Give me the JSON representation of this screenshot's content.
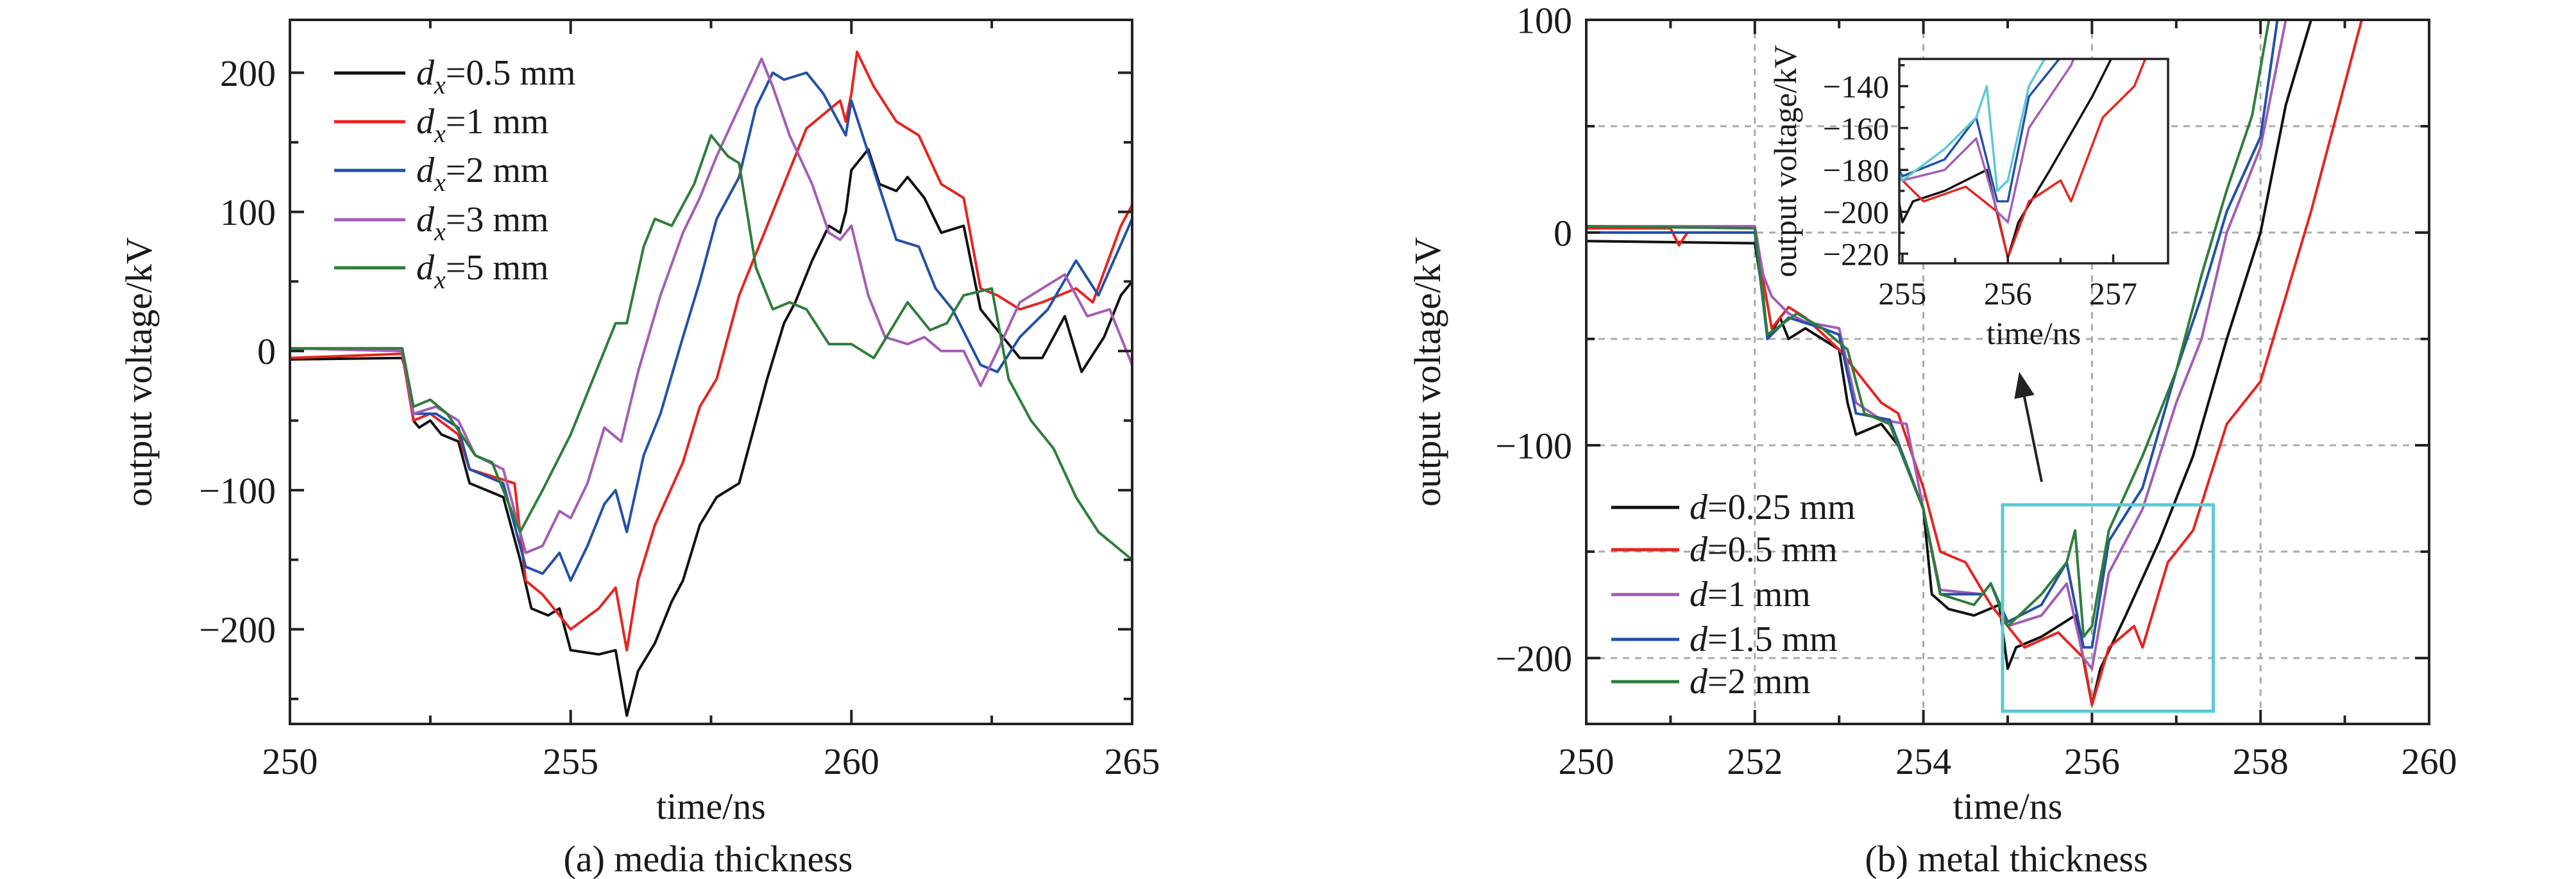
{
  "chart_data": [
    {
      "type": "line",
      "id": "a",
      "caption": "(a) media thickness",
      "xlabel": "time/ns",
      "ylabel": "output voltage/kV",
      "xlim": [
        250,
        265
      ],
      "ylim": [
        -268,
        238
      ],
      "xticks": [
        250,
        255,
        260,
        265
      ],
      "yticks": [
        -200,
        -100,
        0,
        100,
        200
      ],
      "grid": false,
      "legend_position": "top-left",
      "series": [
        {
          "symbol": "d",
          "sub": "x",
          "rest": "=0.5 mm",
          "color": "#111111",
          "x": [
            250,
            252,
            252.1,
            252.2,
            252.3,
            252.5,
            252.7,
            253,
            253.2,
            253.5,
            253.8,
            254.1,
            254.3,
            254.6,
            254.8,
            255,
            255.5,
            255.8,
            256,
            256.2,
            256.5,
            256.8,
            257,
            257.3,
            257.6,
            258,
            258.2,
            258.5,
            258.8,
            259,
            259.3,
            259.6,
            259.8,
            259.9,
            260,
            260.3,
            260.5,
            260.8,
            261,
            261.3,
            261.6,
            262,
            262.3,
            262.6,
            263,
            263.4,
            263.8,
            264.1,
            264.5,
            264.8,
            265
          ],
          "y": [
            -6,
            -5,
            -20,
            -50,
            -55,
            -50,
            -60,
            -65,
            -95,
            -100,
            -105,
            -150,
            -185,
            -190,
            -185,
            -215,
            -218,
            -215,
            -262,
            -230,
            -210,
            -180,
            -165,
            -125,
            -105,
            -95,
            -65,
            -20,
            20,
            35,
            65,
            90,
            85,
            100,
            130,
            145,
            120,
            115,
            125,
            110,
            85,
            90,
            30,
            15,
            -5,
            -5,
            25,
            -15,
            10,
            40,
            50
          ]
        },
        {
          "symbol": "d",
          "sub": "x",
          "rest": "=1 mm",
          "color": "#e8231f",
          "x": [
            250,
            252,
            252.2,
            252.5,
            253,
            253.2,
            253.6,
            254,
            254.2,
            254.5,
            255,
            255.5,
            255.8,
            256,
            256.2,
            256.5,
            257,
            257.3,
            257.6,
            258,
            258.3,
            258.6,
            258.9,
            259.2,
            259.5,
            259.8,
            259.9,
            260,
            260.1,
            260.4,
            260.8,
            261.2,
            261.6,
            262,
            262.3,
            262.6,
            263,
            263.4,
            264,
            264.3,
            264.8,
            265
          ],
          "y": [
            -5,
            -2,
            -50,
            -45,
            -60,
            -85,
            -90,
            -95,
            -165,
            -175,
            -200,
            -185,
            -170,
            -215,
            -165,
            -125,
            -80,
            -40,
            -20,
            40,
            70,
            100,
            130,
            160,
            170,
            180,
            165,
            185,
            215,
            190,
            165,
            155,
            120,
            110,
            45,
            40,
            30,
            35,
            45,
            35,
            90,
            105
          ]
        },
        {
          "symbol": "d",
          "sub": "x",
          "rest": "=2 mm",
          "color": "#2350a8",
          "x": [
            250,
            252,
            252.2,
            252.6,
            253,
            253.2,
            253.8,
            254.2,
            254.5,
            254.8,
            255,
            255.3,
            255.6,
            255.8,
            256,
            256.3,
            256.6,
            257,
            257.3,
            257.6,
            258,
            258.3,
            258.6,
            258.8,
            259.2,
            259.5,
            259.9,
            260,
            260.4,
            260.8,
            261.2,
            261.5,
            261.8,
            262.3,
            262.6,
            263,
            263.5,
            264,
            264.4,
            265
          ],
          "y": [
            2,
            0,
            -45,
            -45,
            -55,
            -85,
            -95,
            -155,
            -160,
            -145,
            -165,
            -140,
            -110,
            -100,
            -130,
            -75,
            -45,
            10,
            50,
            95,
            125,
            175,
            200,
            195,
            200,
            185,
            155,
            180,
            130,
            80,
            75,
            45,
            30,
            -10,
            -15,
            10,
            30,
            65,
            40,
            95
          ]
        },
        {
          "symbol": "d",
          "sub": "x",
          "rest": "=3 mm",
          "color": "#a35db5",
          "x": [
            250,
            252,
            252.2,
            252.6,
            253,
            253.3,
            253.8,
            254.2,
            254.5,
            254.8,
            255,
            255.3,
            255.6,
            255.9,
            256.2,
            256.6,
            257,
            257.3,
            257.6,
            258,
            258.4,
            258.6,
            258.9,
            259.3,
            259.6,
            259.8,
            260,
            260.3,
            260.6,
            261,
            261.3,
            261.6,
            262,
            262.3,
            262.6,
            263,
            263.4,
            263.8,
            264.2,
            264.6,
            265
          ],
          "y": [
            2,
            0,
            -45,
            -40,
            -50,
            -75,
            -85,
            -145,
            -140,
            -115,
            -120,
            -95,
            -55,
            -65,
            -15,
            40,
            85,
            110,
            140,
            175,
            210,
            190,
            155,
            120,
            85,
            80,
            90,
            40,
            10,
            5,
            10,
            0,
            0,
            -25,
            0,
            35,
            45,
            55,
            25,
            30,
            -10
          ]
        },
        {
          "symbol": "d",
          "sub": "x",
          "rest": "=5 mm",
          "color": "#2e7d3a",
          "x": [
            250,
            252,
            252.2,
            252.5,
            252.8,
            253.3,
            253.6,
            254.1,
            254.5,
            255,
            255.5,
            255.8,
            256,
            256.3,
            256.5,
            256.8,
            257.2,
            257.5,
            257.8,
            258,
            258.3,
            258.6,
            258.9,
            259.2,
            259.6,
            260,
            260.4,
            260.7,
            261,
            261.4,
            261.7,
            262,
            262.5,
            262.8,
            263.2,
            263.6,
            264,
            264.4,
            265
          ],
          "y": [
            2,
            2,
            -40,
            -35,
            -45,
            -75,
            -80,
            -130,
            -100,
            -60,
            -10,
            20,
            20,
            75,
            95,
            90,
            120,
            155,
            140,
            135,
            60,
            30,
            35,
            30,
            5,
            5,
            -5,
            15,
            35,
            15,
            20,
            40,
            45,
            -20,
            -50,
            -70,
            -105,
            -130,
            -150
          ]
        }
      ]
    },
    {
      "type": "line",
      "id": "b",
      "caption": "(b) metal thickness",
      "xlabel": "time/ns",
      "ylabel": "output voltage/kV",
      "xlim": [
        250,
        260
      ],
      "ylim": [
        -231,
        100
      ],
      "xticks": [
        250,
        252,
        254,
        256,
        258,
        260
      ],
      "yticks": [
        -200,
        -100,
        0,
        100
      ],
      "grid": true,
      "grid_x": [
        252,
        254,
        256,
        258
      ],
      "grid_y": [
        -200,
        -150,
        -100,
        -50,
        0,
        50
      ],
      "legend_position": "bottom-left",
      "zoom_box": {
        "x": [
          255,
          257.5
        ],
        "y": [
          -225,
          -128
        ]
      },
      "series": [
        {
          "symbol": "d",
          "sub": "",
          "rest": "=0.25 mm",
          "color": "#111111",
          "x": [
            250,
            252,
            252.1,
            252.15,
            252.3,
            252.4,
            252.6,
            252.8,
            253,
            253.1,
            253.2,
            253.5,
            253.7,
            254,
            254.1,
            254.3,
            254.6,
            254.9,
            255,
            255.1,
            255.4,
            255.6,
            255.8,
            256,
            256.1,
            256.4,
            256.8,
            257.2,
            257.6,
            258,
            258.3,
            258.6
          ],
          "y": [
            -4,
            -5,
            -30,
            -50,
            -40,
            -50,
            -45,
            -50,
            -55,
            -80,
            -95,
            -90,
            -100,
            -130,
            -170,
            -177,
            -180,
            -175,
            -205,
            -195,
            -190,
            -185,
            -180,
            -222,
            -205,
            -180,
            -145,
            -105,
            -50,
            0,
            60,
            100
          ]
        },
        {
          "symbol": "d",
          "sub": "",
          "rest": "=0.5 mm",
          "color": "#e8231f",
          "x": [
            250,
            251,
            251.1,
            251.2,
            252,
            252.2,
            252.4,
            252.6,
            253,
            253.2,
            253.5,
            253.7,
            254,
            254.2,
            254.5,
            254.8,
            255,
            255.2,
            255.6,
            255.9,
            256,
            256.2,
            256.5,
            256.6,
            256.9,
            257.2,
            257.6,
            258,
            258.3,
            258.6,
            258.8,
            259,
            259.2
          ],
          "y": [
            2,
            2,
            -6,
            0,
            0,
            -45,
            -35,
            -40,
            -55,
            -65,
            -80,
            -85,
            -120,
            -150,
            -155,
            -175,
            -185,
            -195,
            -188,
            -200,
            -222,
            -195,
            -185,
            -195,
            -155,
            -140,
            -90,
            -70,
            -30,
            10,
            40,
            70,
            100
          ]
        },
        {
          "symbol": "d",
          "sub": "",
          "rest": "=1 mm",
          "color": "#a35db5",
          "x": [
            250,
            252,
            252.1,
            252.2,
            252.4,
            252.6,
            253,
            253.2,
            253.5,
            253.8,
            254,
            254.2,
            254.7,
            254.8,
            255,
            255.4,
            255.7,
            255.9,
            256,
            256.2,
            256.6,
            257,
            257.3,
            257.6,
            258,
            258.3
          ],
          "y": [
            3,
            3,
            -20,
            -30,
            -38,
            -42,
            -45,
            -80,
            -88,
            -90,
            -130,
            -168,
            -170,
            -165,
            -185,
            -180,
            -165,
            -200,
            -205,
            -160,
            -130,
            -80,
            -50,
            0,
            40,
            100
          ]
        },
        {
          "symbol": "d",
          "sub": "",
          "rest": "=1.5 mm",
          "color": "#2350a8",
          "x": [
            250,
            252,
            252.15,
            252.4,
            252.8,
            253,
            253.2,
            253.6,
            254,
            254.2,
            254.7,
            254.8,
            255,
            255.4,
            255.7,
            255.9,
            256,
            256.2,
            256.6,
            257,
            257.3,
            257.6,
            258,
            258.2
          ],
          "y": [
            0,
            0,
            -50,
            -40,
            -45,
            -48,
            -85,
            -88,
            -130,
            -170,
            -170,
            -165,
            -183,
            -175,
            -155,
            -195,
            -195,
            -145,
            -120,
            -65,
            -30,
            10,
            45,
            100
          ]
        },
        {
          "symbol": "d",
          "sub": "",
          "rest": "=2 mm",
          "color": "#2e7d3a",
          "inset_color": "#5bc8d6",
          "x": [
            250,
            252,
            252.15,
            252.5,
            252.8,
            253.1,
            253.3,
            253.6,
            254,
            254.2,
            254.6,
            254.8,
            255,
            255.4,
            255.7,
            255.8,
            255.9,
            256,
            256.2,
            256.6,
            257,
            257.3,
            257.6,
            257.9,
            258.1
          ],
          "y": [
            3,
            2,
            -48,
            -38,
            -45,
            -55,
            -85,
            -90,
            -130,
            -170,
            -175,
            -165,
            -185,
            -170,
            -155,
            -140,
            -190,
            -185,
            -140,
            -105,
            -65,
            -20,
            20,
            55,
            100
          ]
        }
      ],
      "inset": {
        "xlabel": "time/ns",
        "ylabel": "output voltage/kV",
        "xlim": [
          254.97,
          257.52
        ],
        "ylim": [
          -224.6,
          -127
        ],
        "xticks": [
          255,
          256,
          257
        ],
        "yticks": [
          -220,
          -200,
          -180,
          -160,
          -140
        ]
      }
    }
  ]
}
